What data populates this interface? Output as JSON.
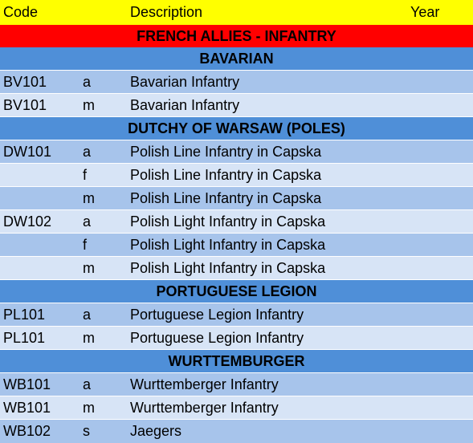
{
  "header": {
    "code": "Code",
    "description": "Description",
    "year": "Year"
  },
  "title": "FRENCH ALLIES - INFANTRY",
  "groups": [
    {
      "name": "BAVARIAN",
      "rows": [
        {
          "code": "BV101",
          "variant": "a",
          "description": "Bavarian Infantry"
        },
        {
          "code": "BV101",
          "variant": "m",
          "description": "Bavarian Infantry"
        }
      ]
    },
    {
      "name": "DUTCHY OF WARSAW (POLES)",
      "rows": [
        {
          "code": "DW101",
          "variant": "a",
          "description": "Polish Line Infantry in Capska"
        },
        {
          "code": "",
          "variant": "f",
          "description": "Polish Line Infantry in Capska"
        },
        {
          "code": "",
          "variant": "m",
          "description": "Polish Line Infantry in Capska"
        },
        {
          "code": "DW102",
          "variant": "a",
          "description": "Polish Light Infantry in Capska"
        },
        {
          "code": "",
          "variant": "f",
          "description": "Polish Light Infantry in Capska"
        },
        {
          "code": "",
          "variant": "m",
          "description": "Polish Light Infantry in Capska"
        }
      ]
    },
    {
      "name": "PORTUGUESE LEGION",
      "rows": [
        {
          "code": "PL101",
          "variant": "a",
          "description": "Portuguese Legion Infantry"
        },
        {
          "code": "PL101",
          "variant": "m",
          "description": "Portuguese Legion Infantry"
        }
      ]
    },
    {
      "name": "WURTTEMBURGER",
      "rows": [
        {
          "code": "WB101",
          "variant": "a",
          "description": "Wurttemberger Infantry"
        },
        {
          "code": "WB101",
          "variant": "m",
          "description": "Wurttemberger Infantry"
        },
        {
          "code": "WB102",
          "variant": "s",
          "description": "Jaegers"
        }
      ]
    }
  ],
  "colors": {
    "header": "#ffff00",
    "title": "#ff0000",
    "group": "#4f8fd8",
    "row_light": "#a7c4eb",
    "row_lighter": "#d7e4f6"
  }
}
